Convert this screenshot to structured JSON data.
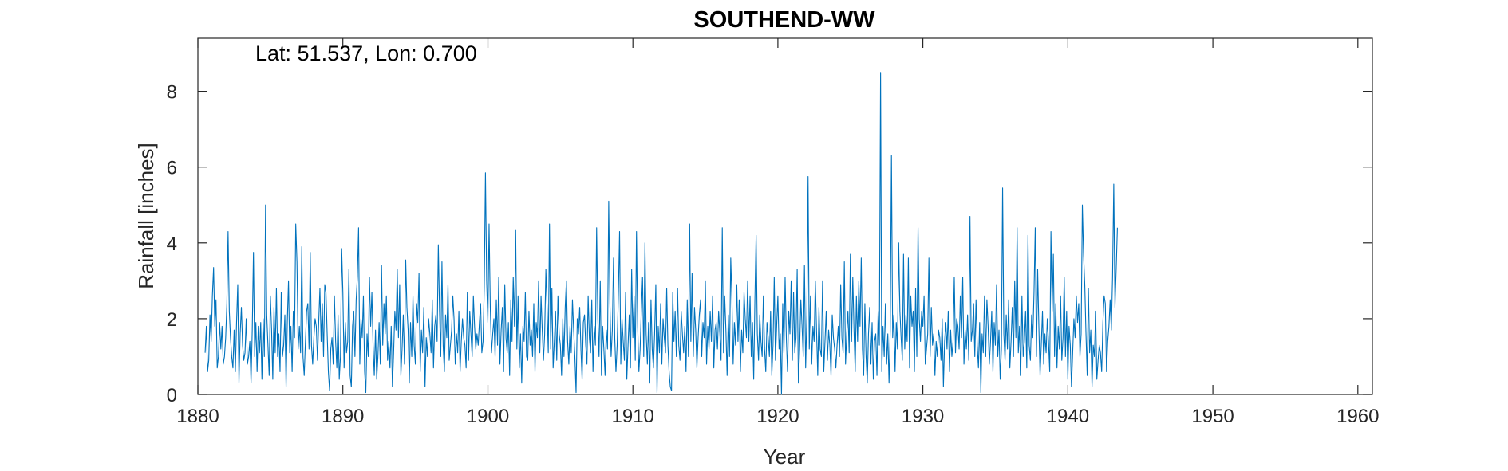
{
  "chart_data": {
    "type": "line",
    "title": "SOUTHEND-WW",
    "annotation": "Lat: 51.537, Lon: 0.700",
    "xlabel": "Year",
    "ylabel": "Rainfall [inches]",
    "xlim": [
      1880,
      1961
    ],
    "ylim": [
      0,
      9.4
    ],
    "xticks": [
      1880,
      1890,
      1900,
      1910,
      1920,
      1930,
      1940,
      1950,
      1960
    ],
    "yticks": [
      0,
      2,
      4,
      6,
      8
    ],
    "grid": false,
    "color": "#0072BD",
    "series": [
      {
        "x_start": 1880.5,
        "step": 0.08333,
        "values": [
          1.1,
          1.8,
          0.6,
          0.9,
          2.1,
          1.4,
          2.6,
          3.35,
          1.8,
          2.5,
          0.7,
          1.0,
          1.9,
          1.2,
          1.8,
          0.8,
          1.0,
          1.5,
          2.4,
          4.3,
          2.2,
          1.5,
          1.0,
          0.7,
          1.7,
          0.6,
          1.9,
          2.9,
          0.3,
          1.6,
          2.3,
          1.3,
          0.9,
          1.1,
          2.0,
          0.8,
          1.0,
          1.4,
          0.3,
          1.7,
          3.75,
          1.0,
          1.9,
          0.6,
          1.8,
          1.1,
          1.9,
          0.4,
          2.0,
          1.0,
          5.0,
          2.1,
          1.3,
          0.5,
          2.6,
          1.7,
          0.4,
          2.3,
          1.1,
          2.8,
          1.0,
          1.6,
          0.6,
          2.7,
          1.0,
          1.3,
          2.1,
          0.2,
          1.9,
          3.0,
          1.1,
          1.8,
          0.6,
          2.2,
          1.5,
          4.5,
          3.5,
          1.2,
          1.8,
          1.1,
          3.9,
          1.0,
          0.5,
          1.4,
          2.2,
          2.4,
          1.2,
          3.75,
          1.3,
          0.8,
          1.5,
          2.0,
          1.8,
          0.9,
          1.9,
          2.8,
          1.4,
          2.4,
          1.0,
          2.9,
          2.7,
          1.6,
          0.6,
          0.1,
          1.2,
          1.5,
          0.8,
          2.6,
          1.4,
          0.7,
          2.1,
          0.4,
          1.0,
          3.85,
          2.7,
          0.7,
          1.9,
          1.1,
          1.4,
          3.3,
          0.5,
          0.2,
          1.8,
          2.2,
          1.0,
          2.5,
          3.1,
          4.4,
          0.8,
          2.0,
          1.5,
          2.6,
          0.6,
          0.05,
          1.6,
          1.0,
          3.1,
          1.8,
          2.7,
          1.3,
          0.5,
          1.7,
          0.4,
          1.0,
          1.9,
          0.8,
          3.4,
          1.3,
          2.4,
          1.6,
          2.6,
          0.9,
          1.4,
          0.7,
          1.8,
          0.2,
          1.1,
          2.2,
          1.7,
          3.3,
          1.5,
          2.9,
          0.5,
          1.2,
          2.1,
          0.8,
          3.55,
          2.3,
          1.7,
          0.3,
          1.9,
          1.0,
          2.6,
          1.3,
          0.8,
          2.4,
          1.9,
          3.2,
          0.6,
          1.7,
          1.1,
          2.3,
          0.2,
          1.5,
          1.0,
          2.0,
          1.6,
          1.1,
          2.5,
          0.7,
          1.8,
          2.1,
          1.4,
          3.95,
          2.2,
          1.0,
          3.5,
          1.3,
          0.6,
          2.1,
          1.5,
          2.9,
          0.9,
          1.3,
          1.7,
          2.6,
          2.0,
          0.8,
          1.6,
          1.1,
          2.2,
          0.6,
          1.4,
          2.0,
          1.5,
          1.3,
          0.7,
          2.7,
          0.9,
          2.2,
          1.6,
          1.0,
          2.6,
          1.8,
          1.2,
          1.6,
          1.3,
          1.9,
          2.4,
          1.1,
          1.4,
          2.8,
          5.85,
          3.0,
          1.9,
          4.5,
          2.3,
          1.1,
          1.6,
          2.0,
          1.0,
          2.5,
          1.3,
          3.1,
          0.8,
          1.7,
          2.3,
          0.6,
          2.9,
          1.5,
          1.1,
          1.9,
          0.5,
          2.5,
          1.4,
          3.1,
          1.8,
          4.35,
          1.2,
          2.6,
          0.7,
          1.6,
          0.3,
          1.8,
          1.4,
          2.7,
          1.0,
          0.9,
          2.2,
          1.3,
          1.7,
          1.0,
          2.4,
          0.6,
          1.9,
          1.5,
          3.0,
          1.1,
          2.6,
          1.7,
          0.9,
          1.6,
          3.3,
          2.3,
          1.1,
          4.5,
          1.2,
          2.8,
          0.7,
          1.4,
          2.2,
          0.9,
          2.6,
          1.6,
          1.3,
          0.5,
          2.0,
          1.0,
          2.3,
          3.0,
          1.4,
          0.8,
          1.8,
          1.1,
          2.5,
          1.7,
          1.0,
          0.05,
          2.0,
          1.6,
          2.3,
          1.2,
          0.4,
          1.9,
          2.1,
          1.3,
          0.8,
          2.6,
          1.5,
          1.1,
          2.5,
          0.6,
          1.8,
          1.3,
          4.4,
          2.0,
          1.0,
          3.0,
          0.5,
          1.8,
          1.2,
          0.5,
          1.7,
          1.2,
          5.1,
          2.4,
          1.0,
          1.7,
          3.6,
          1.5,
          0.6,
          1.3,
          2.6,
          4.3,
          0.8,
          2.0,
          1.4,
          0.9,
          2.7,
          0.4,
          1.3,
          2.1,
          0.7,
          3.3,
          1.5,
          2.6,
          0.9,
          4.3,
          1.8,
          0.6,
          1.2,
          2.2,
          3.1,
          1.0,
          4.0,
          1.6,
          0.8,
          1.9,
          0.3,
          2.5,
          1.2,
          0.7,
          1.6,
          2.9,
          0.05,
          1.8,
          1.1,
          2.4,
          0.8,
          2.0,
          1.5,
          1.1,
          2.8,
          1.3,
          0.6,
          0.2,
          0.1,
          2.7,
          1.4,
          2.2,
          1.0,
          2.8,
          1.3,
          0.9,
          2.2,
          1.6,
          1.1,
          1.8,
          0.6,
          2.5,
          1.0,
          4.5,
          1.4,
          3.2,
          1.0,
          2.3,
          1.7,
          0.7,
          1.5,
          2.1,
          2.5,
          1.0,
          1.9,
          1.5,
          3.0,
          0.8,
          1.8,
          1.2,
          2.2,
          1.4,
          2.6,
          0.7,
          1.7,
          1.9,
          1.2,
          2.2,
          1.6,
          0.9,
          4.4,
          1.1,
          2.6,
          1.7,
          0.5,
          2.1,
          1.0,
          3.6,
          2.5,
          0.8,
          1.9,
          1.3,
          2.9,
          1.4,
          2.5,
          0.6,
          1.7,
          1.1,
          2.7,
          2.0,
          1.5,
          3.0,
          1.4,
          2.6,
          1.0,
          1.9,
          0.4,
          2.5,
          4.2,
          1.6,
          0.9,
          2.1,
          1.4,
          1.0,
          2.6,
          1.2,
          0.6,
          1.9,
          1.5,
          1.0,
          2.2,
          0.5,
          1.3,
          3.1,
          0.9,
          1.8,
          2.6,
          1.2,
          1.6,
          0.0,
          2.4,
          1.1,
          3.1,
          1.5,
          0.6,
          2.2,
          1.6,
          3.0,
          0.9,
          2.7,
          1.1,
          1.5,
          3.3,
          0.3,
          1.2,
          2.5,
          1.8,
          1.0,
          3.4,
          0.7,
          2.1,
          5.75,
          1.2,
          2.6,
          0.8,
          1.8,
          1.4,
          3.0,
          1.7,
          0.5,
          2.3,
          1.2,
          1.0,
          3.0,
          0.6,
          1.4,
          2.2,
          0.9,
          1.7,
          1.3,
          0.5,
          2.1,
          1.5,
          1.2,
          0.7,
          1.3,
          1.8,
          1.0,
          2.9,
          1.5,
          1.1,
          3.5,
          0.8,
          1.6,
          2.2,
          1.1,
          3.7,
          1.4,
          3.1,
          1.7,
          0.6,
          2.6,
          1.4,
          3.0,
          1.8,
          3.6,
          1.2,
          0.5,
          2.4,
          1.0,
          0.3,
          1.6,
          2.3,
          0.8,
          1.9,
          0.4,
          1.4,
          1.6,
          0.5,
          2.2,
          1.3,
          8.5,
          0.6,
          1.8,
          1.0,
          2.4,
          0.8,
          1.6,
          0.3,
          1.7,
          6.3,
          1.5,
          2.1,
          0.6,
          1.9,
          1.2,
          4.0,
          2.2,
          1.5,
          0.9,
          3.7,
          1.2,
          2.1,
          1.4,
          3.6,
          0.7,
          2.6,
          1.8,
          2.2,
          0.6,
          2.8,
          1.0,
          4.4,
          2.0,
          1.4,
          2.2,
          1.8,
          2.6,
          0.8,
          1.2,
          1.6,
          3.6,
          1.0,
          2.3,
          1.3,
          1.6,
          0.5,
          1.4,
          1.0,
          1.7,
          1.5,
          0.9,
          2.0,
          0.2,
          1.4,
          1.9,
          1.2,
          2.2,
          0.6,
          1.7,
          1.0,
          1.4,
          3.1,
          1.1,
          2.0,
          1.8,
          1.2,
          2.6,
          1.5,
          3.1,
          0.8,
          1.7,
          1.2,
          2.1,
          0.9,
          4.7,
          1.4,
          1.7,
          2.4,
          1.0,
          2.5,
          1.3,
          0.7,
          1.9,
          0.05,
          1.6,
          1.1,
          2.6,
          1.0,
          2.5,
          1.8,
          0.8,
          1.4,
          2.2,
          0.6,
          1.9,
          1.3,
          2.9,
          1.0,
          1.7,
          0.4,
          1.2,
          5.45,
          1.6,
          0.9,
          2.1,
          1.2,
          2.5,
          0.7,
          1.4,
          2.3,
          1.0,
          3.0,
          1.5,
          4.4,
          1.1,
          1.8,
          0.5,
          2.6,
          1.0,
          1.4,
          2.2,
          0.7,
          4.2,
          1.3,
          0.9,
          2.1,
          1.5,
          2.7,
          4.4,
          1.0,
          3.3,
          1.8,
          0.5,
          1.3,
          2.2,
          0.8,
          1.6,
          1.1,
          2.0,
          1.4,
          0.6,
          4.3,
          2.2,
          3.7,
          1.0,
          2.4,
          0.7,
          1.8,
          1.2,
          2.6,
          0.9,
          1.5,
          3.1,
          1.0,
          2.2,
          0.4,
          1.8,
          1.3,
          0.2,
          1.1,
          2.0,
          1.5,
          2.6,
          1.9,
          2.4,
          1.0,
          1.6,
          5.0,
          3.7,
          2.9,
          1.6,
          0.5,
          2.8,
          1.1,
          1.7,
          0.2,
          1.3,
          1.0,
          2.2,
          0.4,
          0.9,
          1.3,
          1.1,
          0.6,
          1.9,
          2.6,
          2.4,
          0.6,
          1.4,
          1.8,
          2.5,
          1.7,
          3.1,
          5.55,
          2.3,
          3.3,
          4.4
        ]
      }
    ]
  }
}
